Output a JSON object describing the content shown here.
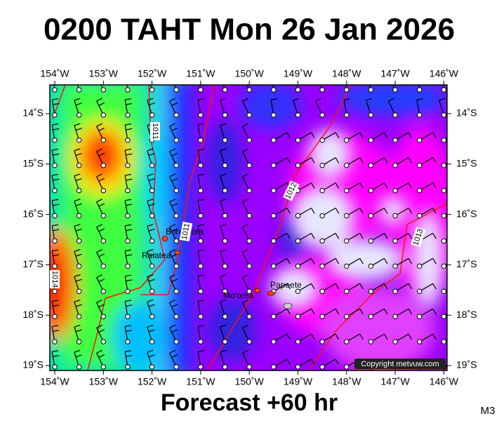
{
  "header": {
    "title": "0200 TAHT Mon 26 Jan 2026"
  },
  "map": {
    "lon_labels": [
      "154˚W",
      "153˚W",
      "152˚W",
      "151˚W",
      "150˚W",
      "149˚W",
      "148˚W",
      "147˚W",
      "146˚W"
    ],
    "lat_labels": [
      "14˚S",
      "15˚S",
      "16˚S",
      "17˚S",
      "18˚S",
      "19˚S"
    ],
    "places": [
      "Bora Bora",
      "Raiatea",
      "Mo'orea",
      "Papeete"
    ],
    "isobar_labels": [
      "1011",
      "1011",
      "1012",
      "1013",
      "1014"
    ],
    "copyright": "Copyright metvuw.com"
  },
  "footer": {
    "forecast": "Forecast +60 hr",
    "code": "M3"
  }
}
